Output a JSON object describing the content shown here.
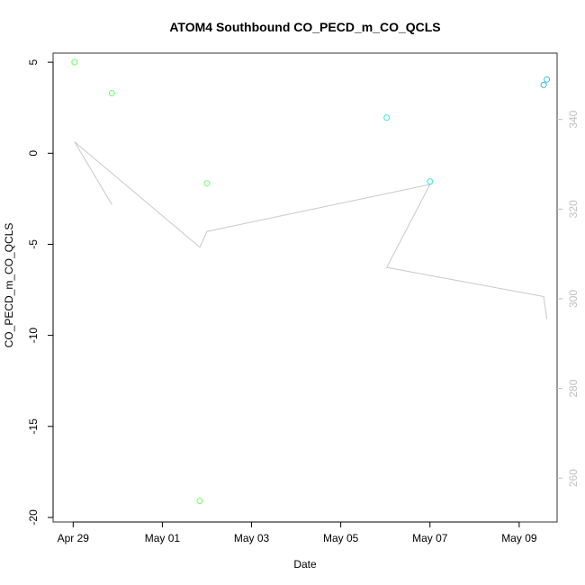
{
  "chart_data": {
    "type": "scatter",
    "title": "ATOM4 Southbound CO_PECD_m_CO_QCLS",
    "xlabel": "Date",
    "ylabel": "CO_PECD_m_CO_QCLS",
    "x_ticks": [
      "Apr 29",
      "May 01",
      "May 03",
      "May 05",
      "May 07",
      "May 09"
    ],
    "x_tick_values": [
      0,
      2,
      4,
      6,
      8,
      10
    ],
    "xlim": [
      -0.45,
      10.85
    ],
    "ylim": [
      -20.25,
      5.5
    ],
    "y_ticks": [
      5,
      0,
      -5,
      -10,
      -15,
      -20
    ],
    "y2_ticks": [
      260,
      280,
      300,
      320,
      340
    ],
    "y2lim": [
      250.2,
      354.8
    ],
    "points": [
      {
        "x": 0.03,
        "y": 5.0,
        "color": "#66ff66"
      },
      {
        "x": 0.87,
        "y": 3.3,
        "color": "#66ff66"
      },
      {
        "x": 2.84,
        "y": -19.1,
        "color": "#66ff66"
      },
      {
        "x": 3.0,
        "y": -1.65,
        "color": "#66ff66"
      },
      {
        "x": 7.03,
        "y": 1.95,
        "color": "#33e8e8"
      },
      {
        "x": 8.0,
        "y": -1.55,
        "color": "#33e8e8"
      },
      {
        "x": 10.55,
        "y": 3.75,
        "color": "#33bbee"
      },
      {
        "x": 10.62,
        "y": 4.05,
        "color": "#33bbee"
      }
    ],
    "line_series": {
      "color": "#c8c8c8",
      "points": [
        {
          "x": 0.03,
          "y2": 335.0
        },
        {
          "x": 0.87,
          "y2": 321.0
        },
        {
          "x": 0.03,
          "y2": 335.0
        },
        {
          "x": 2.84,
          "y2": 311.5
        },
        {
          "x": 3.0,
          "y2": 315.0
        },
        {
          "x": 8.0,
          "y2": 325.5
        },
        {
          "x": 7.03,
          "y2": 307.0
        },
        {
          "x": 10.55,
          "y2": 300.5
        },
        {
          "x": 10.62,
          "y2": 295.5
        }
      ]
    }
  }
}
